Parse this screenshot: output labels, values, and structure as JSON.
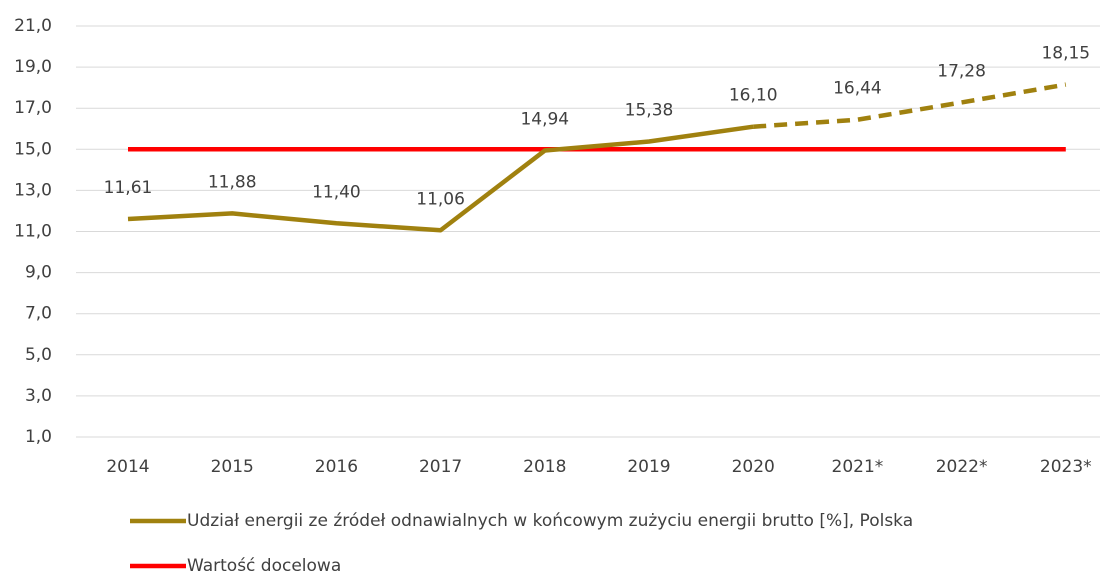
{
  "chart_data": {
    "type": "line",
    "categories": [
      "2014",
      "2015",
      "2016",
      "2017",
      "2018",
      "2019",
      "2020",
      "2021*",
      "2022*",
      "2023*"
    ],
    "series": [
      {
        "name": "Udział energii ze źródeł odnawialnych w końcowym zużyciu energii brutto [%], Polska",
        "color": "#a0810f",
        "values": [
          11.61,
          11.88,
          11.4,
          11.06,
          14.94,
          15.38,
          16.1,
          16.44,
          17.28,
          18.15
        ],
        "value_labels": [
          "11,61",
          "11,88",
          "11,40",
          "11,06",
          "14,94",
          "15,38",
          "16,10",
          "16,44",
          "17,28",
          "18,15"
        ],
        "dashed_from": 6
      },
      {
        "name": "Wartość docelowa",
        "color": "#ff0000",
        "values": [
          15,
          15,
          15,
          15,
          15,
          15,
          15,
          15,
          15,
          15
        ]
      }
    ],
    "ylim": [
      1,
      21
    ],
    "yticks": [
      {
        "value": 1,
        "label": "1,0"
      },
      {
        "value": 3,
        "label": "3,0"
      },
      {
        "value": 5,
        "label": "5,0"
      },
      {
        "value": 7,
        "label": "7,0"
      },
      {
        "value": 9,
        "label": "9,0"
      },
      {
        "value": 11,
        "label": "11,0"
      },
      {
        "value": 13,
        "label": "13,0"
      },
      {
        "value": 15,
        "label": "15,0"
      },
      {
        "value": 17,
        "label": "17,0"
      },
      {
        "value": 19,
        "label": "19,0"
      },
      {
        "value": 21,
        "label": "21,0"
      }
    ],
    "grid": true,
    "legend": "bottom"
  }
}
